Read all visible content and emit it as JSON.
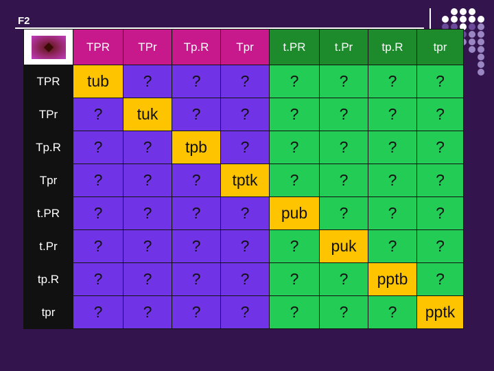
{
  "slide": {
    "label": "F2"
  },
  "colors": {
    "background": "#33144d",
    "header_row": [
      "#c8198c",
      "#c8198c",
      "#c8198c",
      "#c8198c",
      "#1d8a2c",
      "#1d8a2c",
      "#1d8a2c",
      "#1d8a2c"
    ],
    "unknown_cell": "#7133e6",
    "known_cell": "#22cc55",
    "diagonal_cell": "#ffc400",
    "row_header": "#111111"
  },
  "table": {
    "column_headers": [
      "TPR",
      "TPr",
      "Tp.R",
      "Tpr",
      "t.PR",
      "t.Pr",
      "tp.R",
      "tpr"
    ],
    "row_headers": [
      "TPR",
      "TPr",
      "Tp.R",
      "Tpr",
      "t.PR",
      "t.Pr",
      "tp.R",
      "tpr"
    ],
    "rows": [
      [
        "tub",
        "?",
        "?",
        "?",
        "?",
        "?",
        "?",
        "?"
      ],
      [
        "?",
        "tuk",
        "?",
        "?",
        "?",
        "?",
        "?",
        "?"
      ],
      [
        "?",
        "?",
        "tpb",
        "?",
        "?",
        "?",
        "?",
        "?"
      ],
      [
        "?",
        "?",
        "?",
        "tptk",
        "?",
        "?",
        "?",
        "?"
      ],
      [
        "?",
        "?",
        "?",
        "?",
        "pub",
        "?",
        "?",
        "?"
      ],
      [
        "?",
        "?",
        "?",
        "?",
        "?",
        "puk",
        "?",
        "?"
      ],
      [
        "?",
        "?",
        "?",
        "?",
        "?",
        "?",
        "pptb",
        "?"
      ],
      [
        "?",
        "?",
        "?",
        "?",
        "?",
        "?",
        "?",
        "pptk"
      ]
    ]
  }
}
